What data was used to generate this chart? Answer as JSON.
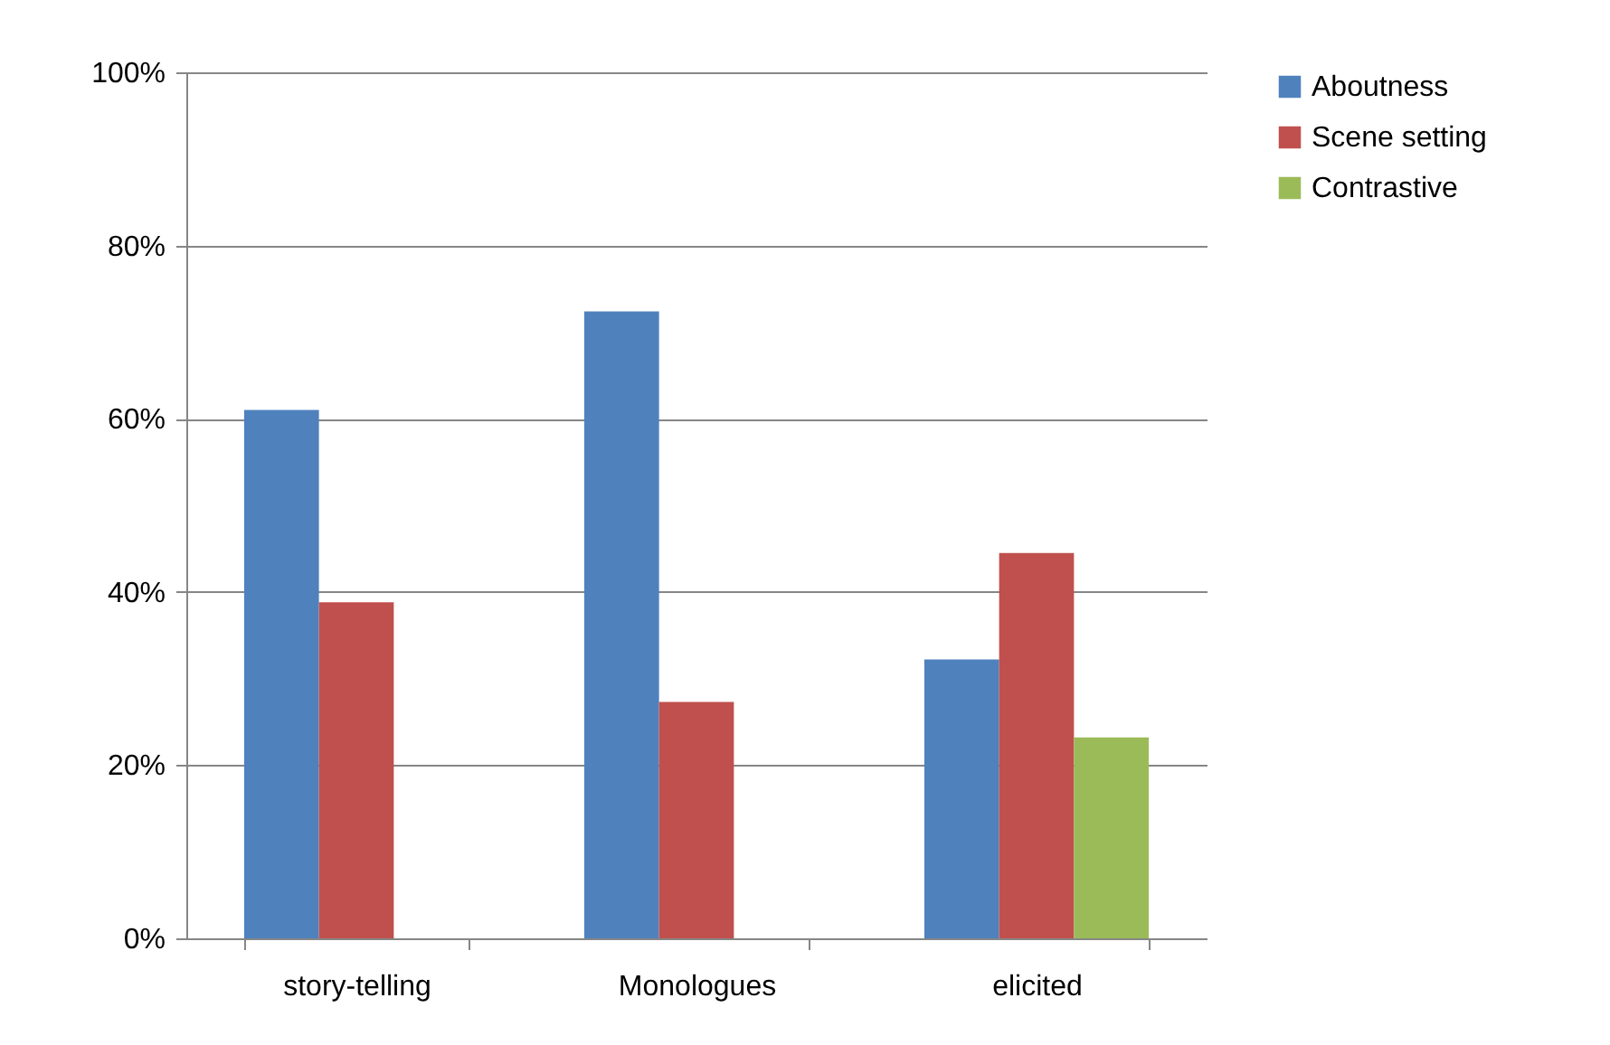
{
  "chart_data": {
    "type": "bar",
    "categories": [
      "story-telling",
      "Monologues",
      "elicited"
    ],
    "series": [
      {
        "name": "Aboutness",
        "color": "#4f81bd",
        "values": [
          61,
          72.4,
          32.2
        ]
      },
      {
        "name": "Scene setting",
        "color": "#c0504d",
        "values": [
          38.8,
          27.3,
          44.5
        ]
      },
      {
        "name": "Contrastive",
        "color": "#9bbb59",
        "values": [
          null,
          null,
          23.2
        ]
      }
    ],
    "ylim": [
      0,
      100
    ],
    "yticks": [
      {
        "value": 0,
        "label": "0%"
      },
      {
        "value": 20,
        "label": "20%"
      },
      {
        "value": 40,
        "label": "40%"
      },
      {
        "value": 60,
        "label": "60%"
      },
      {
        "value": 80,
        "label": "80%"
      },
      {
        "value": 100,
        "label": "100%"
      }
    ],
    "grid": "y",
    "legend": "right"
  }
}
